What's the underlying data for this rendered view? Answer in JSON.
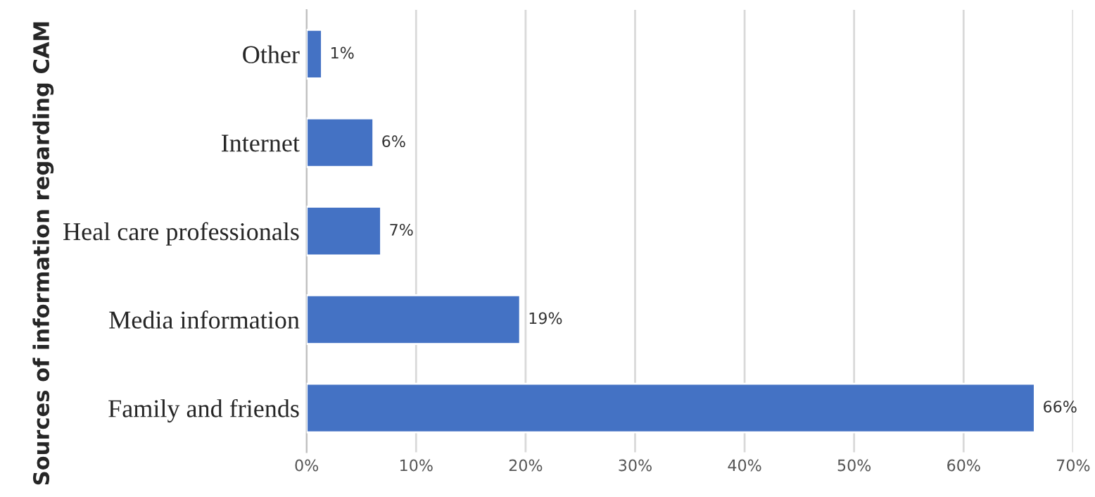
{
  "chart_data": {
    "type": "bar",
    "orientation": "horizontal",
    "ylabel": "Sources of information regarding CAM",
    "categories": [
      "Other",
      "Internet",
      "Heal care professionals",
      "Media information",
      "Family and friends"
    ],
    "values": [
      1.4,
      6.1,
      6.8,
      19.5,
      66.5
    ],
    "value_labels": [
      "1%",
      "6%",
      "7%",
      "19%",
      "66%"
    ],
    "color": "#4472c4",
    "xlim": [
      0,
      70
    ],
    "xticks": [
      {
        "value": 0,
        "label": "0%"
      },
      {
        "value": 10,
        "label": "10%"
      },
      {
        "value": 20,
        "label": "20%"
      },
      {
        "value": 30,
        "label": "30%"
      },
      {
        "value": 40,
        "label": "40%"
      },
      {
        "value": 50,
        "label": "50%"
      },
      {
        "value": 60,
        "label": "60%"
      },
      {
        "value": 70,
        "label": "70%"
      }
    ],
    "grid": "x"
  }
}
